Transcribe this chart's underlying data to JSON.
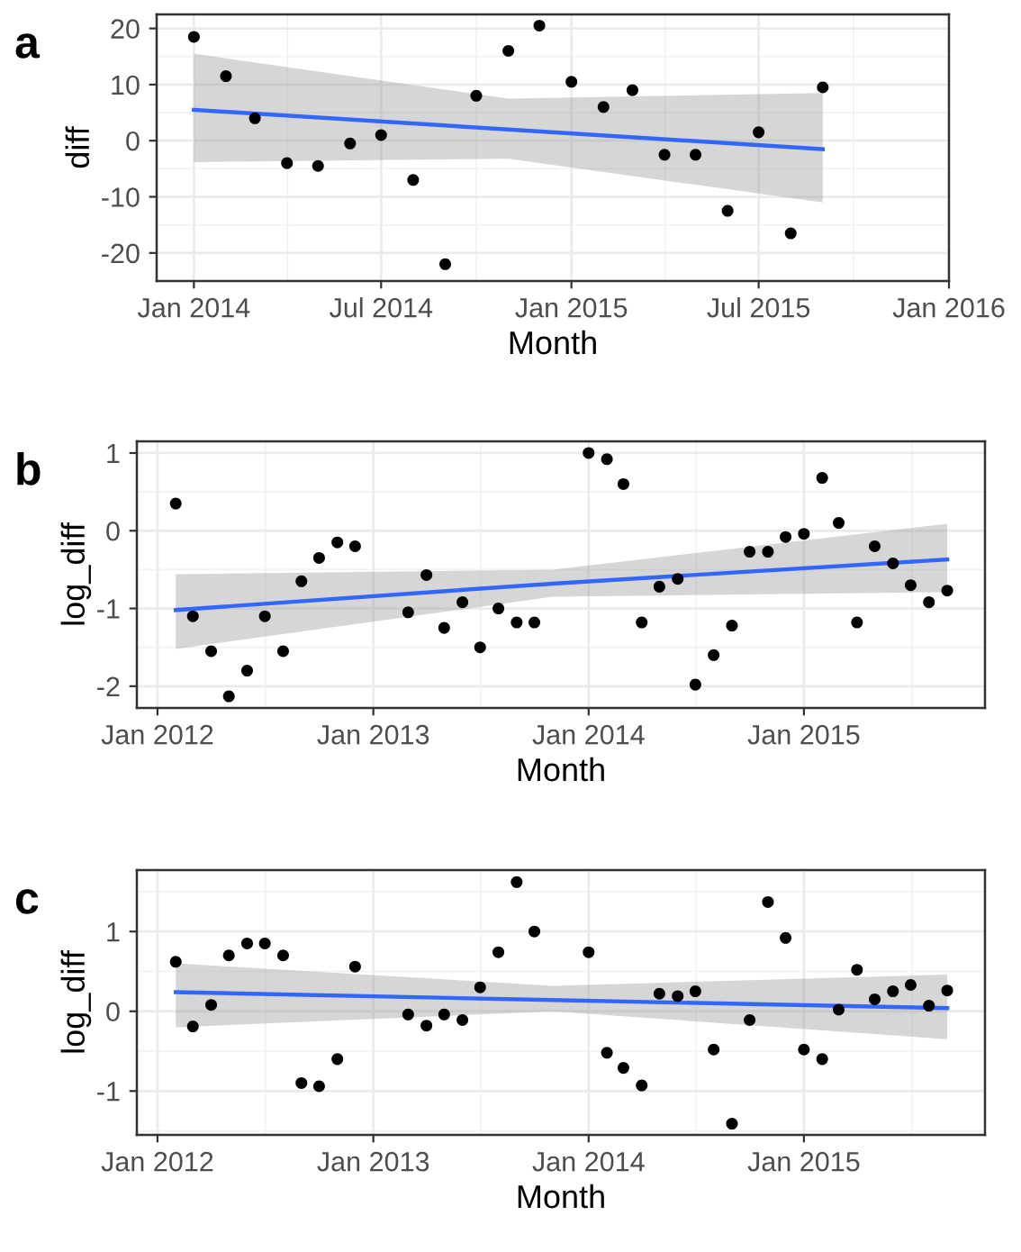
{
  "chart_data": [
    {
      "type": "scatter",
      "title": "a",
      "xlabel": "Month",
      "ylabel": "diff",
      "grid": true,
      "xlim": [
        "2013-11-26",
        "2016-01-01"
      ],
      "ylim": [
        -25,
        22.5
      ],
      "xticks": [
        {
          "value": "2014-01",
          "label": "Jan 2014"
        },
        {
          "value": "2014-07",
          "label": "Jul 2014"
        },
        {
          "value": "2015-01",
          "label": "Jan 2015"
        },
        {
          "value": "2015-07",
          "label": "Jul 2015"
        },
        {
          "value": "2016-01",
          "label": "Jan 2016"
        }
      ],
      "yticks": [
        -20,
        -10,
        0,
        10,
        20
      ],
      "series": [
        {
          "color": "#000000",
          "marker": "circle",
          "x": [
            "2014-01",
            "2014-02",
            "2014-03",
            "2014-04",
            "2014-05",
            "2014-06",
            "2014-07",
            "2014-08",
            "2014-09",
            "2014-10",
            "2014-11",
            "2014-12",
            "2015-01",
            "2015-02",
            "2015-03",
            "2015-04",
            "2015-05",
            "2015-06",
            "2015-07",
            "2015-08",
            "2015-09"
          ],
          "values": [
            18.5,
            11.5,
            4,
            -4,
            -4.5,
            -0.5,
            1,
            -7,
            -22,
            8,
            16,
            20.5,
            10.5,
            6,
            9,
            -2.5,
            -2.5,
            -12.5,
            1.5,
            -16.5,
            9.5
          ]
        },
        {
          "type": "line",
          "color": "#3366ff",
          "line_style": "solid",
          "x": [
            "2014-01",
            "2014-11",
            "2015-09"
          ],
          "values": [
            5.5,
            2,
            -1.5
          ],
          "lower": [
            -3.8,
            -3.2,
            -11
          ],
          "upper": [
            15.5,
            7.5,
            8.5
          ]
        }
      ]
    },
    {
      "type": "scatter",
      "title": "b",
      "xlabel": "Month",
      "ylabel": "log_diff",
      "grid": true,
      "xlim": [
        "2011-11-27",
        "2015-11-04"
      ],
      "ylim": [
        -2.28,
        1.15
      ],
      "xticks": [
        {
          "value": "2012-01",
          "label": "Jan 2012"
        },
        {
          "value": "2013-01",
          "label": "Jan 2013"
        },
        {
          "value": "2014-01",
          "label": "Jan 2014"
        },
        {
          "value": "2015-01",
          "label": "Jan 2015"
        }
      ],
      "yticks": [
        -2,
        -1,
        0,
        1
      ],
      "series": [
        {
          "type": "scatter",
          "color": "#000000",
          "marker": "circle",
          "x": [
            "2012-02",
            "2012-03",
            "2012-04",
            "2012-05",
            "2012-06",
            "2012-07",
            "2012-08",
            "2012-09",
            "2012-10",
            "2012-11",
            "2012-12",
            "2013-03",
            "2013-04",
            "2013-05",
            "2013-06",
            "2013-07",
            "2013-08",
            "2013-09",
            "2013-10",
            "2014-01",
            "2014-02",
            "2014-03",
            "2014-04",
            "2014-05",
            "2014-06",
            "2014-07",
            "2014-08",
            "2014-09",
            "2014-10",
            "2014-11",
            "2014-12",
            "2015-01",
            "2015-02",
            "2015-03",
            "2015-04",
            "2015-05",
            "2015-06",
            "2015-07",
            "2015-08",
            "2015-09"
          ],
          "values": [
            0.35,
            -1.1,
            -1.55,
            -2.13,
            -1.8,
            -1.1,
            -1.55,
            -0.65,
            -0.35,
            -0.15,
            -0.2,
            -1.05,
            -0.57,
            -1.25,
            -0.92,
            -1.5,
            -1.0,
            -1.18,
            -1.18,
            1.0,
            0.92,
            0.6,
            -1.18,
            -0.72,
            -0.62,
            -1.98,
            -1.6,
            -1.22,
            -0.27,
            -0.27,
            -0.08,
            -0.04,
            0.68,
            0.1,
            -1.18,
            -0.2,
            -0.42,
            -0.7,
            -0.92,
            -0.77
          ]
        },
        {
          "type": "line",
          "color": "#3366ff",
          "line_style": "solid",
          "x": [
            "2012-02",
            "2013-11",
            "2015-09"
          ],
          "values": [
            -1.02,
            -0.68,
            -0.37
          ],
          "lower": [
            -1.52,
            -0.85,
            -0.79
          ],
          "upper": [
            -0.56,
            -0.5,
            0.09
          ]
        }
      ]
    },
    {
      "type": "scatter",
      "title": "c",
      "xlabel": "Month",
      "ylabel": "log_diff",
      "grid": true,
      "xlim": [
        "2011-11-27",
        "2015-11-04"
      ],
      "ylim": [
        -1.55,
        1.77
      ],
      "xticks": [
        {
          "value": "2012-01",
          "label": "Jan 2012"
        },
        {
          "value": "2013-01",
          "label": "Jan 2013"
        },
        {
          "value": "2014-01",
          "label": "Jan 2014"
        },
        {
          "value": "2015-01",
          "label": "Jan 2015"
        }
      ],
      "yticks": [
        -1,
        0,
        1
      ],
      "series": [
        {
          "type": "scatter",
          "color": "#000000",
          "marker": "circle",
          "x": [
            "2012-02",
            "2012-03",
            "2012-04",
            "2012-05",
            "2012-06",
            "2012-07",
            "2012-08",
            "2012-09",
            "2012-10",
            "2012-11",
            "2012-12",
            "2013-03",
            "2013-04",
            "2013-05",
            "2013-06",
            "2013-07",
            "2013-08",
            "2013-09",
            "2013-10",
            "2014-01",
            "2014-02",
            "2014-03",
            "2014-04",
            "2014-05",
            "2014-06",
            "2014-07",
            "2014-08",
            "2014-09",
            "2014-10",
            "2014-11",
            "2014-12",
            "2015-01",
            "2015-02",
            "2015-03",
            "2015-04",
            "2015-05",
            "2015-06",
            "2015-07",
            "2015-08",
            "2015-09"
          ],
          "values": [
            0.62,
            -0.19,
            0.08,
            0.7,
            0.85,
            0.85,
            0.7,
            -0.9,
            -0.94,
            -0.6,
            0.56,
            -0.04,
            -0.18,
            -0.04,
            -0.11,
            0.3,
            0.74,
            1.62,
            1.0,
            0.74,
            -0.52,
            -0.71,
            -0.93,
            0.22,
            0.19,
            0.25,
            -0.48,
            -1.41,
            -0.11,
            1.37,
            0.92,
            -0.48,
            -0.6,
            0.02,
            0.52,
            0.15,
            0.25,
            0.33,
            0.07,
            0.26
          ]
        },
        {
          "type": "line",
          "color": "#3366ff",
          "line_style": "solid",
          "x": [
            "2012-02",
            "2013-11",
            "2015-09"
          ],
          "values": [
            0.24,
            0.14,
            0.04
          ],
          "lower": [
            -0.2,
            0.0,
            -0.35
          ],
          "upper": [
            0.6,
            0.32,
            0.46
          ]
        }
      ]
    }
  ]
}
